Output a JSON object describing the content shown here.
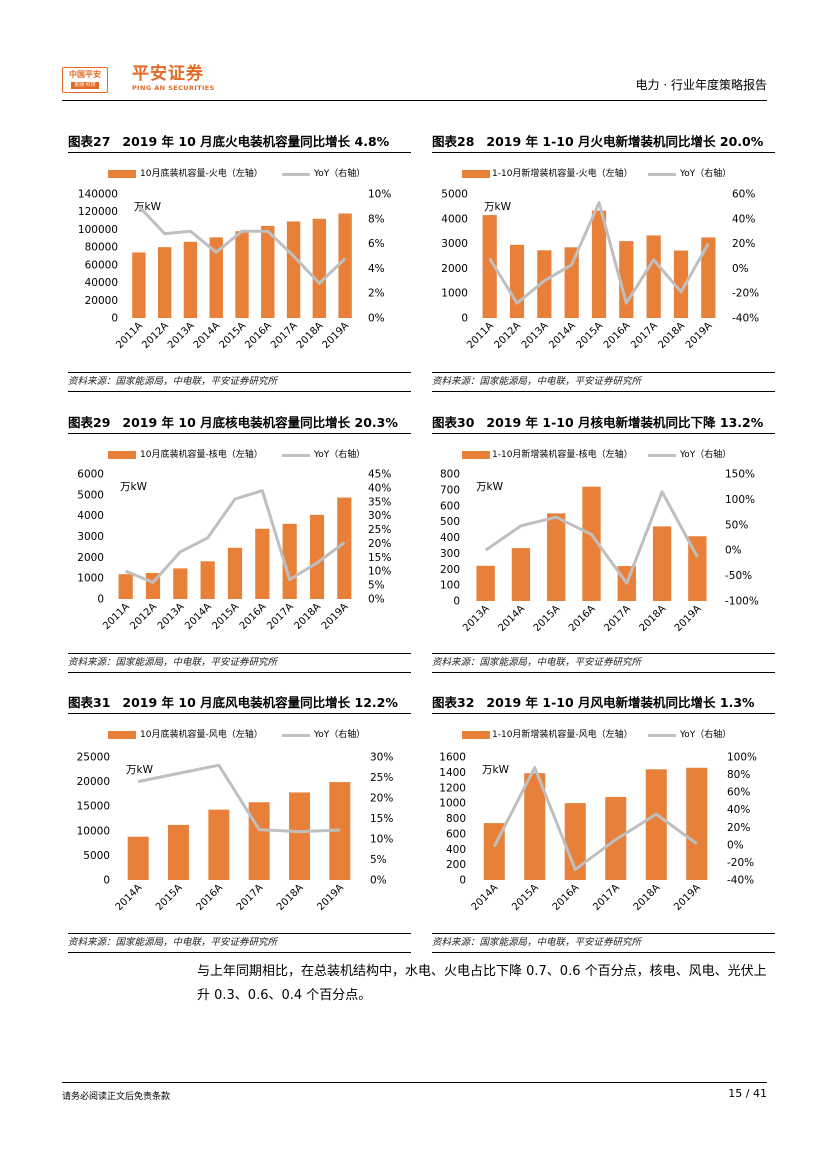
{
  "header": {
    "logo_mark": "中国平安",
    "logo_mark_sub": "金融·科技",
    "brand_cn": "平安证券",
    "brand_en": "PING AN SECURITIES",
    "doc_title": "电力 · 行业年度策略报告"
  },
  "colors": {
    "bar": "#e8803a",
    "line": "#bfbfbf"
  },
  "panels": [
    {
      "number": "图表27",
      "title": "2019 年 10 月底火电装机容量同比增长 4.8%",
      "source": "资料来源：国家能源局，中电联，平安证券研究所",
      "unit": "万kW",
      "legend_bar": "10月底装机容量-火电（左轴）",
      "legend_line": "YoY（右轴）"
    },
    {
      "number": "图表28",
      "title": "2019 年 1-10 月火电新增装机同比增长 20.0%",
      "source": "资料来源：国家能源局，中电联，平安证券研究所",
      "unit": "万kW",
      "legend_bar": "1-10月新增装机容量-火电（左轴）",
      "legend_line": "YoY（右轴）"
    },
    {
      "number": "图表29",
      "title": "2019 年 10 月底核电装机容量同比增长 20.3%",
      "source": "资料来源：国家能源局，中电联，平安证券研究所",
      "unit": "万kW",
      "legend_bar": "10月底装机容量-核电（左轴）",
      "legend_line": "YoY（右轴）"
    },
    {
      "number": "图表30",
      "title": "2019 年 1-10 月核电新增装机同比下降 13.2%",
      "source": "资料来源：国家能源局，中电联，平安证券研究所",
      "unit": "万kW",
      "legend_bar": "1-10月新增装机容量-核电（左轴）",
      "legend_line": "YoY（右轴）"
    },
    {
      "number": "图表31",
      "title": "2019 年 10 月底风电装机容量同比增长 12.2%",
      "source": "资料来源：国家能源局，中电联，平安证券研究所",
      "unit": "万kW",
      "legend_bar": "10月底装机容量-风电（左轴）",
      "legend_line": "YoY（右轴）"
    },
    {
      "number": "图表32",
      "title": "2019 年 1-10 月风电新增装机同比增长 1.3%",
      "source": "资料来源：国家能源局，中电联，平安证券研究所",
      "unit": "万kW",
      "legend_bar": "1-10月新增装机容量-风电（左轴）",
      "legend_line": "YoY（右轴）"
    }
  ],
  "chart_data": [
    {
      "type": "bar",
      "categories": [
        "2011A",
        "2012A",
        "2013A",
        "2014A",
        "2015A",
        "2016A",
        "2017A",
        "2018A",
        "2019A"
      ],
      "series": [
        {
          "name": "10月底装机容量-火电（左轴）",
          "axis": "left",
          "values": [
            74000,
            80000,
            86000,
            91000,
            98000,
            104000,
            109000,
            112000,
            118000
          ]
        },
        {
          "name": "YoY（右轴）",
          "axis": "right",
          "type": "line",
          "values": [
            9.0,
            6.8,
            7.0,
            5.3,
            7.0,
            7.0,
            5.0,
            2.8,
            4.8
          ]
        }
      ],
      "ylim_left": [
        0,
        140000
      ],
      "yticks_left": [
        "0",
        "20000",
        "40000",
        "60000",
        "80000",
        "100000",
        "120000",
        "140000"
      ],
      "ylim_right": [
        0,
        10
      ],
      "yticks_right": [
        "0%",
        "2%",
        "4%",
        "6%",
        "8%",
        "10%"
      ]
    },
    {
      "type": "bar",
      "categories": [
        "2011A",
        "2012A",
        "2013A",
        "2014A",
        "2015A",
        "2016A",
        "2017A",
        "2018A",
        "2019A"
      ],
      "series": [
        {
          "name": "1-10月新增装机容量-火电（左轴）",
          "axis": "left",
          "values": [
            4150,
            2950,
            2730,
            2850,
            4330,
            3100,
            3330,
            2720,
            3250
          ]
        },
        {
          "name": "YoY（右轴）",
          "axis": "right",
          "type": "line",
          "values": [
            8,
            -28,
            -10,
            3,
            53,
            -28,
            7,
            -19,
            20
          ]
        }
      ],
      "ylim_left": [
        0,
        5000
      ],
      "yticks_left": [
        "0",
        "1000",
        "2000",
        "3000",
        "4000",
        "5000"
      ],
      "ylim_right": [
        -40,
        60
      ],
      "yticks_right": [
        "-40%",
        "-20%",
        "0%",
        "20%",
        "40%",
        "60%"
      ]
    },
    {
      "type": "bar",
      "categories": [
        "2011A",
        "2012A",
        "2013A",
        "2014A",
        "2015A",
        "2016A",
        "2017A",
        "2018A",
        "2019A"
      ],
      "series": [
        {
          "name": "10月底装机容量-核电（左轴）",
          "axis": "left",
          "values": [
            1190,
            1250,
            1470,
            1810,
            2460,
            3370,
            3610,
            4040,
            4870
          ]
        },
        {
          "name": "YoY（右轴）",
          "axis": "right",
          "type": "line",
          "values": [
            10,
            6,
            17,
            22,
            36,
            39,
            7,
            13,
            20.3
          ]
        }
      ],
      "ylim_left": [
        0,
        6000
      ],
      "yticks_left": [
        "0",
        "1000",
        "2000",
        "3000",
        "4000",
        "5000",
        "6000"
      ],
      "ylim_right": [
        0,
        45
      ],
      "yticks_right": [
        "0%",
        "5%",
        "10%",
        "15%",
        "20%",
        "25%",
        "30%",
        "35%",
        "40%",
        "45%"
      ]
    },
    {
      "type": "bar",
      "categories": [
        "2013A",
        "2014A",
        "2015A",
        "2016A",
        "2017A",
        "2018A",
        "2019A"
      ],
      "series": [
        {
          "name": "1-10月新增装机容量-核电（左轴）",
          "axis": "left",
          "values": [
            222,
            333,
            552,
            720,
            220,
            470,
            408
          ]
        },
        {
          "name": "YoY（右轴）",
          "axis": "right",
          "type": "line",
          "values": [
            0,
            48,
            65,
            31,
            -65,
            115,
            -13.2
          ]
        }
      ],
      "ylim_left": [
        0,
        800
      ],
      "yticks_left": [
        "0",
        "100",
        "200",
        "300",
        "400",
        "500",
        "600",
        "700",
        "800"
      ],
      "ylim_right": [
        -100,
        150
      ],
      "yticks_right": [
        "-100%",
        "-50%",
        "0%",
        "50%",
        "100%",
        "150%"
      ]
    },
    {
      "type": "bar",
      "categories": [
        "2014A",
        "2015A",
        "2016A",
        "2017A",
        "2018A",
        "2019A"
      ],
      "series": [
        {
          "name": "10月底装机容量-风电（左轴）",
          "axis": "left",
          "values": [
            8800,
            11200,
            14300,
            15800,
            17800,
            19900
          ]
        },
        {
          "name": "YoY（右轴）",
          "axis": "right",
          "type": "line",
          "values": [
            24,
            26,
            28,
            12.3,
            11.8,
            12.2
          ]
        }
      ],
      "ylim_left": [
        0,
        25000
      ],
      "yticks_left": [
        "0",
        "5000",
        "10000",
        "15000",
        "20000",
        "25000"
      ],
      "ylim_right": [
        0,
        30
      ],
      "yticks_right": [
        "0%",
        "5%",
        "10%",
        "15%",
        "20%",
        "25%",
        "30%"
      ]
    },
    {
      "type": "bar",
      "categories": [
        "2014A",
        "2015A",
        "2016A",
        "2017A",
        "2018A",
        "2019A"
      ],
      "series": [
        {
          "name": "1-10月新增装机容量-风电（左轴）",
          "axis": "left",
          "values": [
            740,
            1390,
            1000,
            1080,
            1440,
            1460
          ]
        },
        {
          "name": "YoY（右轴）",
          "axis": "right",
          "type": "line",
          "values": [
            -2,
            88,
            -28,
            6,
            35,
            1.3
          ]
        }
      ],
      "ylim_left": [
        0,
        1600
      ],
      "yticks_left": [
        "0",
        "200",
        "400",
        "600",
        "800",
        "1000",
        "1200",
        "1400",
        "1600"
      ],
      "ylim_right": [
        -40,
        100
      ],
      "yticks_right": [
        "-40%",
        "-20%",
        "0%",
        "20%",
        "40%",
        "60%",
        "80%",
        "100%"
      ]
    }
  ],
  "body_text": "与上年同期相比，在总装机结构中，水电、火电占比下降 0.7、0.6 个百分点，核电、风电、光伏上升 0.3、0.6、0.4 个百分点。",
  "footer": {
    "disclaimer": "请务必阅读正文后免责条款",
    "page": "15 / 41"
  }
}
